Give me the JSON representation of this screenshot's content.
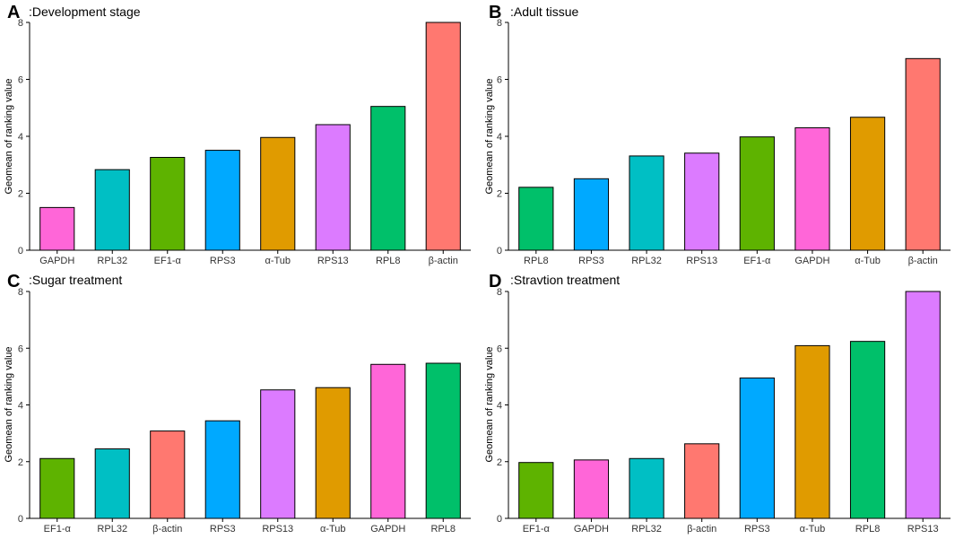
{
  "chart_data": [
    {
      "type": "bar",
      "panel": "A",
      "title": ":Development stage",
      "xlabel": "",
      "ylabel": "Geomean of ranking value",
      "ylim": [
        0,
        8
      ],
      "yticks": [
        0,
        2,
        4,
        6,
        8
      ],
      "categories": [
        "GAPDH",
        "RPL32",
        "EF1-α",
        "RPS3",
        "α-Tub",
        "RPS13",
        "RPL8",
        "β-actin"
      ],
      "values": [
        1.5,
        2.83,
        3.26,
        3.51,
        3.96,
        4.41,
        5.05,
        8.0
      ]
    },
    {
      "type": "bar",
      "panel": "B",
      "title": ":Adult tissue",
      "xlabel": "",
      "ylabel": "Geomean of ranking value",
      "ylim": [
        0,
        8
      ],
      "yticks": [
        0,
        2,
        4,
        6,
        8
      ],
      "categories": [
        "RPL8",
        "RPS3",
        "RPL32",
        "RPS13",
        "EF1-α",
        "GAPDH",
        "α-Tub",
        "β-actin"
      ],
      "values": [
        2.21,
        2.51,
        3.31,
        3.41,
        3.98,
        4.3,
        4.67,
        6.73
      ]
    },
    {
      "type": "bar",
      "panel": "C",
      "title": ":Sugar treatment",
      "xlabel": "",
      "ylabel": "Geomean of ranking value",
      "ylim": [
        0,
        8
      ],
      "yticks": [
        0,
        2,
        4,
        6,
        8
      ],
      "categories": [
        "EF1-α",
        "RPL32",
        "β-actin",
        "RPS3",
        "RPS13",
        "α-Tub",
        "GAPDH",
        "RPL8"
      ],
      "values": [
        2.11,
        2.45,
        3.08,
        3.44,
        4.53,
        4.61,
        5.43,
        5.47
      ]
    },
    {
      "type": "bar",
      "panel": "D",
      "title": ":Stravtion treatment",
      "xlabel": "",
      "ylabel": "Geomean of ranking value",
      "ylim": [
        0,
        8
      ],
      "yticks": [
        0,
        2,
        4,
        6,
        8
      ],
      "categories": [
        "EF1-α",
        "GAPDH",
        "RPL32",
        "β-actin",
        "RPS3",
        "α-Tub",
        "RPL8",
        "RPS13"
      ],
      "values": [
        1.97,
        2.06,
        2.11,
        2.63,
        4.95,
        6.09,
        6.24,
        8.0
      ]
    }
  ],
  "gene_colors": {
    "GAPDH": "#FF66D8",
    "RPL32": "#00BFC4",
    "EF1-α": "#5EB300",
    "RPS3": "#00A9FF",
    "α-Tub": "#E09B00",
    "RPS13": "#DC7BFF",
    "RPL8": "#00C06A",
    "β-actin": "#FF7870"
  }
}
